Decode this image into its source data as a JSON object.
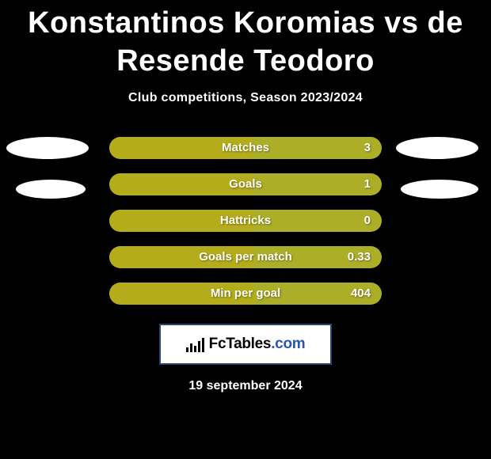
{
  "title": "Konstantinos Koromias vs de Resende Teodoro",
  "subtitle": "Club competitions, Season 2023/2024",
  "date": "19 september 2024",
  "logo": {
    "name": "FcTables",
    "suffix": ".com"
  },
  "colors": {
    "background": "#000000",
    "text": "#ffffff",
    "pill_right": "#adae28",
    "pill_left": "#b4ac1a",
    "oval": "#ffffff",
    "logo_border": "#28437a",
    "logo_blue": "#2a56b0"
  },
  "rows": [
    {
      "label": "Matches",
      "value": "3",
      "left_fill_pct": 53,
      "show_left_oval": true,
      "show_right_oval": true,
      "right_oval_offset": false
    },
    {
      "label": "Goals",
      "value": "1",
      "left_fill_pct": 53,
      "show_left_oval": false,
      "show_right_oval": false,
      "right_oval_offset": false,
      "show_left_oval_down": true,
      "show_right_oval_down": true
    },
    {
      "label": "Hattricks",
      "value": "0",
      "left_fill_pct": 53,
      "show_left_oval": false,
      "show_right_oval": false
    },
    {
      "label": "Goals per match",
      "value": "0.33",
      "left_fill_pct": 53,
      "show_left_oval": false,
      "show_right_oval": false
    },
    {
      "label": "Min per goal",
      "value": "404",
      "left_fill_pct": 53,
      "show_left_oval": false,
      "show_right_oval": false
    }
  ]
}
